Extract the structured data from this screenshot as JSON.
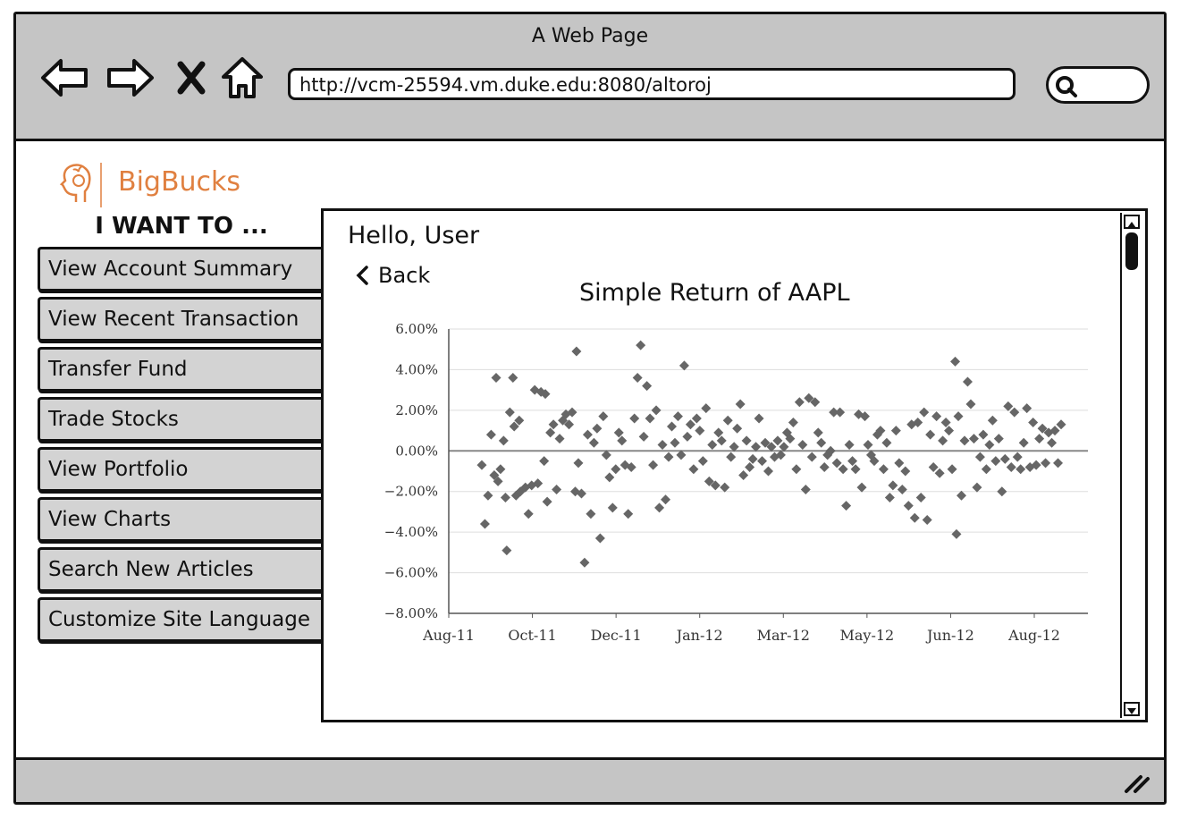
{
  "window": {
    "title": "A Web Page",
    "url": "http://vcm-25594.vm.duke.edu:8080/altoroj"
  },
  "brand": {
    "name": "BigBucks"
  },
  "sidebar": {
    "heading": "I WANT TO ...",
    "items": [
      {
        "label": "View Account Summary"
      },
      {
        "label": "View Recent Transaction"
      },
      {
        "label": "Transfer Fund"
      },
      {
        "label": "Trade Stocks"
      },
      {
        "label": "View Portfolio"
      },
      {
        "label": "View Charts"
      },
      {
        "label": "Search New Articles"
      },
      {
        "label": "Customize Site Language"
      }
    ]
  },
  "main": {
    "greeting": "Hello, User",
    "back_label": "Back"
  },
  "colors": {
    "brand": "#e08040",
    "chrome": "#c5c5c5",
    "button": "#d3d3d3",
    "points": "#666666"
  },
  "chart_data": {
    "type": "scatter",
    "title": "Simple Return of AAPL",
    "xlabel": "",
    "ylabel": "",
    "x_ticks": [
      "Aug-11",
      "Oct-11",
      "Dec-11",
      "Jan-12",
      "Mar-12",
      "May-12",
      "Jun-12",
      "Aug-12"
    ],
    "y_ticks": [
      "6.00%",
      "4.00%",
      "2.00%",
      "0.00%",
      "−2.00%",
      "−4.00%",
      "−6.00%",
      "−8.00%"
    ],
    "ylim": [
      -8,
      6
    ],
    "grid": true,
    "points": [
      [
        0.1,
        -0.7
      ],
      [
        0.15,
        -3.6
      ],
      [
        0.2,
        -2.2
      ],
      [
        0.25,
        0.8
      ],
      [
        0.3,
        -1.2
      ],
      [
        0.33,
        3.6
      ],
      [
        0.36,
        -1.5
      ],
      [
        0.4,
        -0.9
      ],
      [
        0.45,
        0.5
      ],
      [
        0.48,
        -2.3
      ],
      [
        0.5,
        -4.9
      ],
      [
        0.55,
        1.9
      ],
      [
        0.6,
        3.6
      ],
      [
        0.62,
        1.2
      ],
      [
        0.65,
        -2.2
      ],
      [
        0.7,
        1.5
      ],
      [
        0.72,
        -2.0
      ],
      [
        0.8,
        -1.8
      ],
      [
        0.85,
        -3.1
      ],
      [
        0.9,
        -1.7
      ],
      [
        0.95,
        3.0
      ],
      [
        1.0,
        -1.6
      ],
      [
        1.05,
        2.9
      ],
      [
        1.1,
        -0.5
      ],
      [
        1.12,
        2.8
      ],
      [
        1.15,
        -2.5
      ],
      [
        1.2,
        0.9
      ],
      [
        1.25,
        1.3
      ],
      [
        1.3,
        -1.9
      ],
      [
        1.35,
        0.6
      ],
      [
        1.4,
        1.5
      ],
      [
        1.45,
        1.8
      ],
      [
        1.5,
        1.3
      ],
      [
        1.55,
        1.9
      ],
      [
        1.6,
        -2.0
      ],
      [
        1.62,
        4.9
      ],
      [
        1.65,
        -0.6
      ],
      [
        1.7,
        -2.1
      ],
      [
        1.75,
        -5.5
      ],
      [
        1.8,
        0.8
      ],
      [
        1.85,
        -3.1
      ],
      [
        1.9,
        0.4
      ],
      [
        1.95,
        1.1
      ],
      [
        2.0,
        -4.3
      ],
      [
        2.05,
        1.7
      ],
      [
        2.1,
        -0.2
      ],
      [
        2.15,
        -1.3
      ],
      [
        2.2,
        -2.8
      ],
      [
        2.25,
        -0.9
      ],
      [
        2.3,
        0.9
      ],
      [
        2.35,
        0.5
      ],
      [
        2.4,
        -0.7
      ],
      [
        2.45,
        -3.1
      ],
      [
        2.5,
        -0.8
      ],
      [
        2.55,
        1.6
      ],
      [
        2.6,
        3.6
      ],
      [
        2.65,
        5.2
      ],
      [
        2.7,
        0.7
      ],
      [
        2.75,
        3.2
      ],
      [
        2.8,
        1.6
      ],
      [
        2.85,
        -0.7
      ],
      [
        2.9,
        2.0
      ],
      [
        2.95,
        -2.8
      ],
      [
        3.0,
        0.3
      ],
      [
        3.05,
        -2.4
      ],
      [
        3.1,
        -0.3
      ],
      [
        3.15,
        1.2
      ],
      [
        3.2,
        0.4
      ],
      [
        3.25,
        1.7
      ],
      [
        3.3,
        -0.2
      ],
      [
        3.35,
        4.2
      ],
      [
        3.4,
        0.7
      ],
      [
        3.45,
        1.3
      ],
      [
        3.5,
        -0.9
      ],
      [
        3.55,
        1.6
      ],
      [
        3.6,
        1.0
      ],
      [
        3.65,
        -0.5
      ],
      [
        3.7,
        2.1
      ],
      [
        3.75,
        -1.5
      ],
      [
        3.8,
        0.3
      ],
      [
        3.85,
        -1.7
      ],
      [
        3.9,
        0.9
      ],
      [
        3.95,
        0.5
      ],
      [
        4.0,
        -1.8
      ],
      [
        4.05,
        1.5
      ],
      [
        4.1,
        -0.3
      ],
      [
        4.15,
        0.2
      ],
      [
        4.2,
        1.1
      ],
      [
        4.25,
        2.3
      ],
      [
        4.3,
        -1.2
      ],
      [
        4.35,
        0.5
      ],
      [
        4.4,
        -0.8
      ],
      [
        4.45,
        -0.4
      ],
      [
        4.5,
        0.2
      ],
      [
        4.55,
        1.6
      ],
      [
        4.6,
        -0.5
      ],
      [
        4.65,
        0.4
      ],
      [
        4.7,
        -1.0
      ],
      [
        4.75,
        0.2
      ],
      [
        4.8,
        -0.3
      ],
      [
        4.85,
        0.5
      ],
      [
        4.9,
        -0.2
      ],
      [
        4.95,
        0.2
      ],
      [
        5.0,
        0.9
      ],
      [
        5.05,
        0.6
      ],
      [
        5.1,
        1.4
      ],
      [
        5.15,
        -0.9
      ],
      [
        5.2,
        2.4
      ],
      [
        5.25,
        0.3
      ],
      [
        5.3,
        -1.9
      ],
      [
        5.35,
        2.6
      ],
      [
        5.4,
        -0.3
      ],
      [
        5.45,
        2.4
      ],
      [
        5.5,
        0.9
      ],
      [
        5.55,
        0.4
      ],
      [
        5.6,
        -0.8
      ],
      [
        5.65,
        -0.2
      ],
      [
        5.7,
        0.0
      ],
      [
        5.75,
        1.9
      ],
      [
        5.8,
        -0.6
      ],
      [
        5.85,
        1.9
      ],
      [
        5.9,
        -0.9
      ],
      [
        5.95,
        -2.7
      ],
      [
        6.0,
        0.3
      ],
      [
        6.05,
        -0.5
      ],
      [
        6.1,
        -0.9
      ],
      [
        6.15,
        1.8
      ],
      [
        6.2,
        -1.8
      ],
      [
        6.25,
        1.7
      ],
      [
        6.3,
        0.3
      ],
      [
        6.35,
        -0.2
      ],
      [
        6.4,
        -0.5
      ],
      [
        6.45,
        0.8
      ],
      [
        6.5,
        1.0
      ],
      [
        6.55,
        -0.9
      ],
      [
        6.6,
        0.4
      ],
      [
        6.65,
        -2.3
      ],
      [
        6.7,
        -1.7
      ],
      [
        6.75,
        1.0
      ],
      [
        6.8,
        -0.6
      ],
      [
        6.85,
        -1.9
      ],
      [
        6.9,
        -1.0
      ],
      [
        6.95,
        -2.7
      ],
      [
        7.0,
        1.3
      ],
      [
        7.05,
        -3.3
      ],
      [
        7.1,
        1.4
      ],
      [
        7.15,
        -2.3
      ],
      [
        7.2,
        1.9
      ],
      [
        7.25,
        -3.4
      ],
      [
        7.3,
        0.8
      ],
      [
        7.35,
        -0.8
      ],
      [
        7.4,
        1.7
      ],
      [
        7.45,
        -1.1
      ],
      [
        7.5,
        0.5
      ],
      [
        7.55,
        1.4
      ],
      [
        7.6,
        1.0
      ],
      [
        7.65,
        -0.9
      ],
      [
        7.7,
        4.4
      ],
      [
        7.72,
        -4.1
      ],
      [
        7.75,
        1.7
      ],
      [
        7.8,
        -2.2
      ],
      [
        7.85,
        0.5
      ],
      [
        7.9,
        3.4
      ],
      [
        7.95,
        2.3
      ],
      [
        8.0,
        0.6
      ],
      [
        8.05,
        -1.8
      ],
      [
        8.1,
        -0.3
      ],
      [
        8.15,
        0.8
      ],
      [
        8.2,
        -0.9
      ],
      [
        8.25,
        0.3
      ],
      [
        8.3,
        1.5
      ],
      [
        8.35,
        -0.5
      ],
      [
        8.4,
        0.6
      ],
      [
        8.45,
        -2.0
      ],
      [
        8.5,
        -0.4
      ],
      [
        8.55,
        2.2
      ],
      [
        8.6,
        -0.8
      ],
      [
        8.65,
        1.9
      ],
      [
        8.7,
        -0.3
      ],
      [
        8.75,
        -0.9
      ],
      [
        8.8,
        0.4
      ],
      [
        8.85,
        2.1
      ],
      [
        8.9,
        -0.8
      ],
      [
        8.95,
        1.4
      ],
      [
        9.0,
        -0.7
      ],
      [
        9.05,
        0.6
      ],
      [
        9.1,
        1.1
      ],
      [
        9.15,
        -0.6
      ],
      [
        9.2,
        0.9
      ],
      [
        9.25,
        0.4
      ],
      [
        9.3,
        1.0
      ],
      [
        9.35,
        -0.6
      ],
      [
        9.4,
        1.3
      ]
    ]
  }
}
